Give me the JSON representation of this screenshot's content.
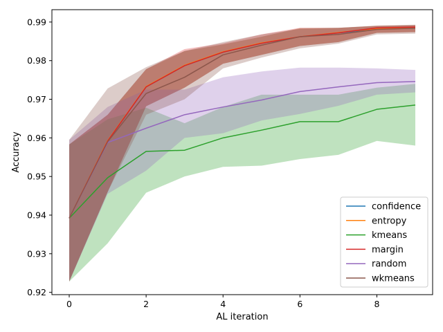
{
  "chart_data": {
    "type": "line",
    "title": "",
    "xlabel": "AL iteration",
    "ylabel": "Accuracy",
    "xlim": [
      -0.45,
      9.45
    ],
    "ylim": [
      0.9194,
      0.9932
    ],
    "xticks": [
      0,
      2,
      4,
      6,
      8
    ],
    "xtick_labels": [
      "0",
      "2",
      "4",
      "6",
      "8"
    ],
    "yticks": [
      0.92,
      0.93,
      0.94,
      0.95,
      0.96,
      0.97,
      0.98,
      0.99
    ],
    "ytick_labels": [
      "0.92",
      "0.93",
      "0.94",
      "0.95",
      "0.96",
      "0.97",
      "0.98",
      "0.99"
    ],
    "grid": false,
    "legend_position": "lower-right",
    "x": [
      0,
      1,
      2,
      3,
      4,
      5,
      6,
      7,
      8,
      9
    ],
    "series": [
      {
        "name": "confidence",
        "color": "#1f77b4",
        "values": [
          0.9392,
          0.9592,
          0.9732,
          0.9787,
          0.9822,
          0.9845,
          0.9862,
          0.9872,
          0.9882,
          0.9884
        ],
        "lower": [
          0.9228,
          0.946,
          0.9682,
          0.973,
          0.9792,
          0.9815,
          0.9838,
          0.9848,
          0.9872,
          0.9874
        ],
        "upper": [
          0.9583,
          0.966,
          0.9778,
          0.9825,
          0.9842,
          0.9862,
          0.9884,
          0.9885,
          0.989,
          0.9892
        ]
      },
      {
        "name": "entropy",
        "color": "#ff7f0e",
        "values": [
          0.9392,
          0.9593,
          0.9733,
          0.9788,
          0.9823,
          0.9846,
          0.9862,
          0.9873,
          0.9883,
          0.9885
        ],
        "lower": [
          0.9228,
          0.946,
          0.9682,
          0.973,
          0.9792,
          0.9815,
          0.9838,
          0.9848,
          0.9872,
          0.9874
        ],
        "upper": [
          0.9583,
          0.966,
          0.9778,
          0.9825,
          0.9842,
          0.9862,
          0.9884,
          0.9885,
          0.989,
          0.9892
        ]
      },
      {
        "name": "kmeans",
        "color": "#2ca02c",
        "values": [
          0.9392,
          0.9497,
          0.9565,
          0.9568,
          0.96,
          0.962,
          0.9642,
          0.9642,
          0.9674,
          0.9685
        ],
        "lower": [
          0.9228,
          0.9327,
          0.9458,
          0.95,
          0.9525,
          0.9528,
          0.9545,
          0.9556,
          0.9592,
          0.958
        ],
        "upper": [
          0.9583,
          0.9648,
          0.9678,
          0.9638,
          0.968,
          0.9712,
          0.9712,
          0.9712,
          0.973,
          0.974
        ]
      },
      {
        "name": "margin",
        "color": "#d62728",
        "values": [
          0.9392,
          0.9592,
          0.9732,
          0.9787,
          0.9822,
          0.9845,
          0.9862,
          0.9872,
          0.9885,
          0.9887
        ],
        "lower": [
          0.9228,
          0.946,
          0.9682,
          0.973,
          0.9792,
          0.9815,
          0.9838,
          0.9848,
          0.9872,
          0.9874
        ],
        "upper": [
          0.9583,
          0.966,
          0.9778,
          0.983,
          0.9845,
          0.9868,
          0.9885,
          0.9885,
          0.989,
          0.9892
        ]
      },
      {
        "name": "random",
        "color": "#9467bd",
        "values": [
          0.9392,
          0.9588,
          0.9625,
          0.966,
          0.968,
          0.9698,
          0.972,
          0.9732,
          0.9743,
          0.9746
        ],
        "lower": [
          0.9228,
          0.9455,
          0.9515,
          0.96,
          0.9612,
          0.9645,
          0.9662,
          0.9683,
          0.9712,
          0.9718
        ],
        "upper": [
          0.9595,
          0.968,
          0.9725,
          0.9725,
          0.9757,
          0.9772,
          0.9782,
          0.9782,
          0.978,
          0.9776
        ]
      },
      {
        "name": "wkmeans",
        "color": "#8c564b",
        "values": [
          0.9392,
          0.959,
          0.9715,
          0.9757,
          0.9815,
          0.984,
          0.9862,
          0.9868,
          0.9881,
          0.9884
        ],
        "lower": [
          0.9228,
          0.946,
          0.966,
          0.97,
          0.978,
          0.9808,
          0.9832,
          0.9844,
          0.9868,
          0.987
        ],
        "upper": [
          0.9595,
          0.9728,
          0.9783,
          0.9825,
          0.9848,
          0.9868,
          0.9882,
          0.9885,
          0.9891,
          0.9893
        ]
      }
    ]
  }
}
